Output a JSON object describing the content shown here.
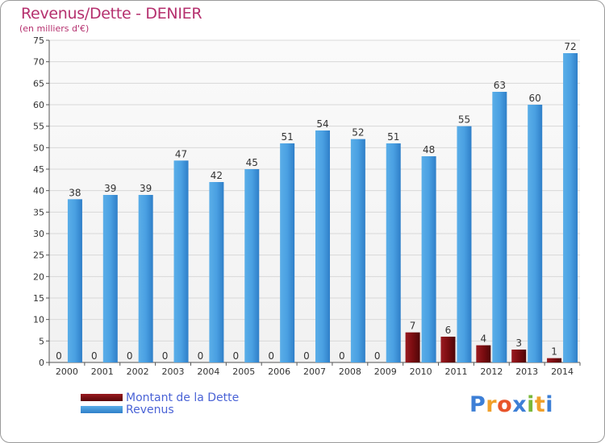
{
  "header": {
    "title": "Revenus/Dette - DENIER",
    "subtitle": "(en milliers d'€)"
  },
  "chart_data": {
    "type": "bar",
    "categories": [
      "2000",
      "2001",
      "2002",
      "2003",
      "2004",
      "2005",
      "2006",
      "2007",
      "2008",
      "2009",
      "2010",
      "2011",
      "2012",
      "2013",
      "2014"
    ],
    "ylim": [
      0,
      75
    ],
    "yticks": [
      0,
      5,
      10,
      15,
      20,
      25,
      30,
      35,
      40,
      45,
      50,
      55,
      60,
      65,
      70,
      75
    ],
    "grid": true,
    "legend_position": "bottom-left",
    "series": [
      {
        "name": "Montant de la Dette",
        "color": "#7a0c10",
        "values": [
          0,
          0,
          0,
          0,
          0,
          0,
          0,
          0,
          0,
          0,
          7,
          6,
          4,
          3,
          1
        ]
      },
      {
        "name": "Revenus",
        "color": "#4a9ee0",
        "values": [
          38,
          39,
          39,
          47,
          42,
          45,
          51,
          54,
          52,
          51,
          48,
          55,
          63,
          60,
          72
        ]
      }
    ]
  },
  "logo": {
    "letters": [
      "P",
      "r",
      "o",
      "x",
      "i",
      "t",
      "i"
    ],
    "colors": [
      "#3d7fd6",
      "#f0a02a",
      "#e8542a",
      "#3d7fd6",
      "#7ab83a",
      "#f0a02a",
      "#3d7fd6"
    ]
  }
}
